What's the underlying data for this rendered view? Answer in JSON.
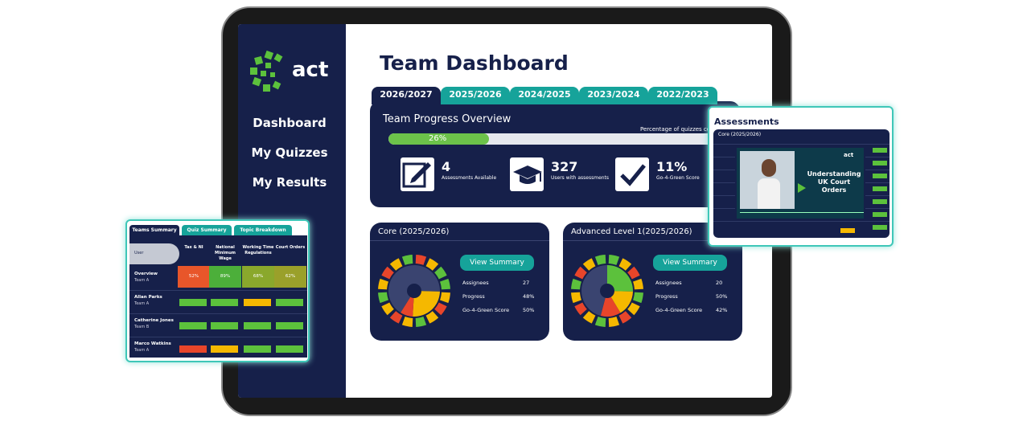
{
  "sidebar": {
    "logo": "act",
    "nav": [
      "Dashboard",
      "My Quizzes",
      "My Results"
    ]
  },
  "header": {
    "title": "Team Dashboard"
  },
  "tabs": [
    "2026/2027",
    "2025/2026",
    "2024/2025",
    "2023/2024",
    "2022/2023"
  ],
  "progress": {
    "title": "Team Progress Overview",
    "caption": "Percentage of quizzes comp",
    "percent": 26,
    "percent_label": "26%",
    "stats": [
      {
        "value": "4",
        "label": "Assessments Available"
      },
      {
        "value": "327",
        "label": "Users with assessments"
      },
      {
        "value": "11%",
        "label": "Go-4-Green Score"
      }
    ]
  },
  "cards": [
    {
      "title": "Core (2025/2026)",
      "button": "View Summary",
      "rows": [
        {
          "label": "Assignees",
          "value": "27"
        },
        {
          "label": "Progress",
          "value": "48%"
        },
        {
          "label": "Go-4-Green Score",
          "value": "50%"
        }
      ]
    },
    {
      "title": "Advanced Level 1(2025/2026)",
      "button": "View Summary",
      "rows": [
        {
          "label": "Assignees",
          "value": "20"
        },
        {
          "label": "Progress",
          "value": "50%"
        },
        {
          "label": "Go-4-Green Score",
          "value": "42%"
        }
      ]
    }
  ],
  "assessments": {
    "title": "Assessments",
    "subtitle": "Core (2025/2026)",
    "logo": "act",
    "video_title": "Understanding UK Court Orders"
  },
  "teams": {
    "tabs": [
      "Teams Summary",
      "Quiz Summary",
      "Topic Breakdown"
    ],
    "columns": [
      "User",
      "Tax & NI",
      "National Minimum Wage",
      "Working Time Regulations",
      "Court Orders"
    ],
    "overview": {
      "name": "Overview",
      "team": "Team A",
      "cells": [
        "52%",
        "89%",
        "68%",
        "62%"
      ],
      "colors": [
        "#e8562a",
        "#4caf3a",
        "#8aa82c",
        "#9aa02a"
      ]
    },
    "rows": [
      {
        "name": "Allan Parks",
        "team": "Team A",
        "colors": [
          "#5cc13c",
          "#5cc13c",
          "#f5b800",
          "#5cc13c"
        ]
      },
      {
        "name": "Catherine Jones",
        "team": "Team B",
        "colors": [
          "#5cc13c",
          "#5cc13c",
          "#5cc13c",
          "#5cc13c"
        ]
      },
      {
        "name": "Marco Watkins",
        "team": "Team A",
        "colors": [
          "#e8452a",
          "#f5b800",
          "#5cc13c",
          "#5cc13c"
        ]
      }
    ]
  }
}
